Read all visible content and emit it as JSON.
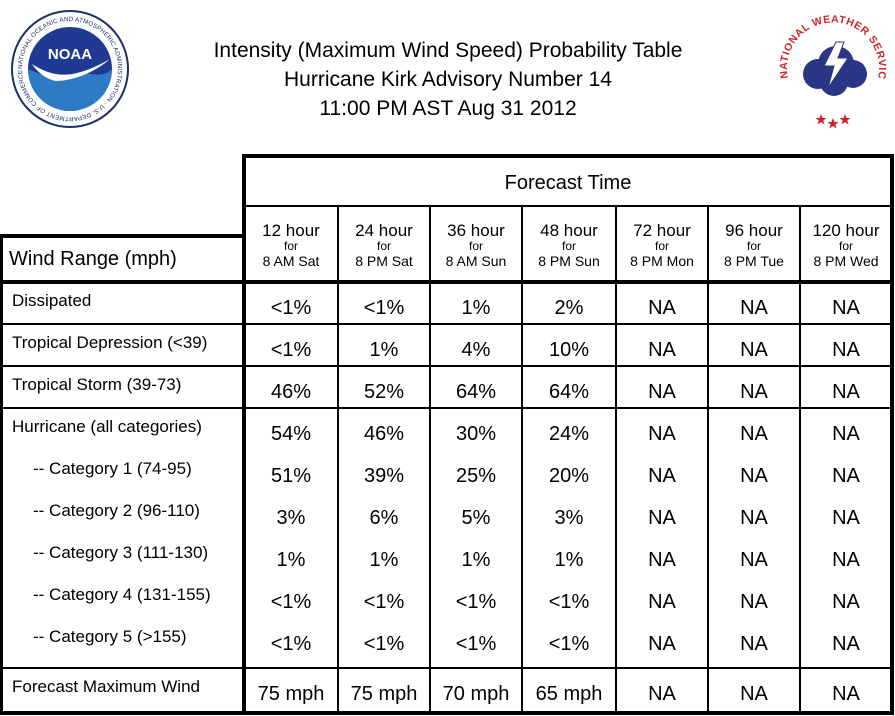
{
  "header": {
    "line1": "Intensity (Maximum Wind Speed) Probability Table",
    "line2": "Hurricane Kirk Advisory Number 14",
    "line3": "11:00 PM AST Aug 31 2012"
  },
  "logos": {
    "noaa_text": "NOAA",
    "noaa_ring_text": "NATIONAL OCEANIC AND ATMOSPHERIC ADMINISTRATION · U.S. DEPARTMENT OF COMMERCE",
    "nws_ring_text": "NATIONAL WEATHER SERVICE"
  },
  "table": {
    "group_header": "Forecast Time",
    "row_header": "Wind Range (mph)",
    "for_label": "for",
    "columns": [
      {
        "hours": "12 hour",
        "time": "8 AM Sat"
      },
      {
        "hours": "24 hour",
        "time": "8 PM Sat"
      },
      {
        "hours": "36 hour",
        "time": "8 AM Sun"
      },
      {
        "hours": "48 hour",
        "time": "8 PM Sun"
      },
      {
        "hours": "72 hour",
        "time": "8 PM Mon"
      },
      {
        "hours": "96 hour",
        "time": "8 PM Tue"
      },
      {
        "hours": "120 hour",
        "time": "8 PM Wed"
      }
    ],
    "rows": [
      {
        "label": "Dissipated",
        "values": [
          "<1%",
          "<1%",
          "1%",
          "2%",
          "NA",
          "NA",
          "NA"
        ]
      },
      {
        "label": "Tropical Depression (<39)",
        "values": [
          "<1%",
          "1%",
          "4%",
          "10%",
          "NA",
          "NA",
          "NA"
        ]
      },
      {
        "label": "Tropical Storm (39-73)",
        "values": [
          "46%",
          "52%",
          "64%",
          "64%",
          "NA",
          "NA",
          "NA"
        ]
      },
      {
        "label": "Hurricane (all categories)",
        "values": [
          "54%",
          "46%",
          "30%",
          "24%",
          "NA",
          "NA",
          "NA"
        ]
      },
      {
        "label": "-- Category 1 (74-95)",
        "values": [
          "51%",
          "39%",
          "25%",
          "20%",
          "NA",
          "NA",
          "NA"
        ]
      },
      {
        "label": "-- Category 2 (96-110)",
        "values": [
          "3%",
          "6%",
          "5%",
          "3%",
          "NA",
          "NA",
          "NA"
        ]
      },
      {
        "label": "-- Category 3 (111-130)",
        "values": [
          "1%",
          "1%",
          "1%",
          "1%",
          "NA",
          "NA",
          "NA"
        ]
      },
      {
        "label": "-- Category 4 (131-155)",
        "values": [
          "<1%",
          "<1%",
          "<1%",
          "<1%",
          "NA",
          "NA",
          "NA"
        ]
      },
      {
        "label": "-- Category 5 (>155)",
        "values": [
          "<1%",
          "<1%",
          "<1%",
          "<1%",
          "NA",
          "NA",
          "NA"
        ]
      },
      {
        "label": "Forecast Maximum Wind",
        "values": [
          "75 mph",
          "75 mph",
          "70 mph",
          "65 mph",
          "NA",
          "NA",
          "NA"
        ]
      }
    ]
  }
}
